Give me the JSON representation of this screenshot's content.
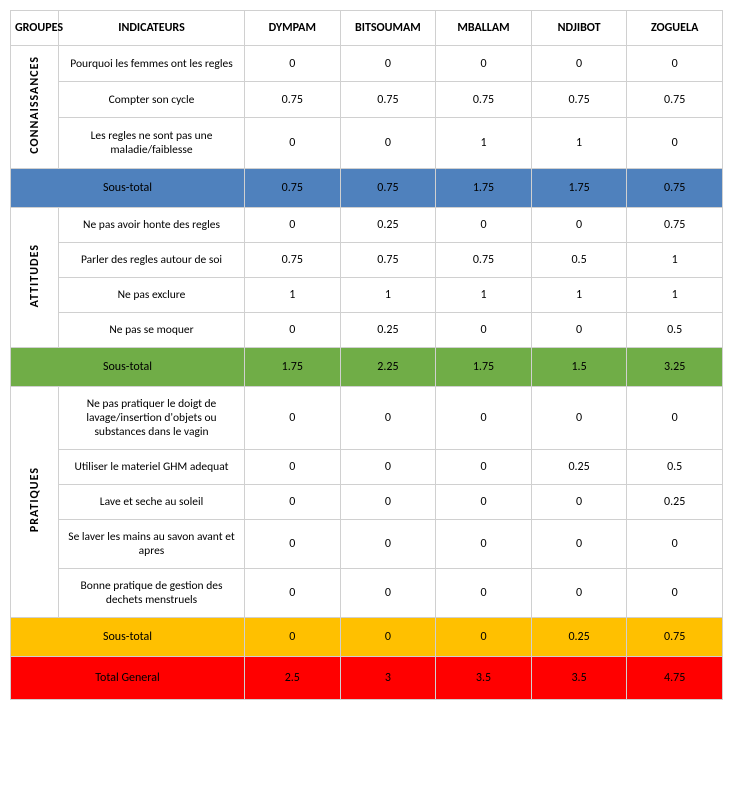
{
  "headers": {
    "groupes": "GROUPES",
    "indicateurs": "INDICATEURS",
    "villages": [
      "DYMPAM",
      "BITSOUMAM",
      "MBALLAM",
      "NDJIBOT",
      "ZOGUELA"
    ]
  },
  "colors": {
    "subtotal_connaissances": "#4f81bd",
    "subtotal_attitudes": "#70ad47",
    "subtotal_pratiques": "#ffc000",
    "total_general": "#ff0000",
    "border": "#d0d0d0",
    "bg": "#ffffff",
    "text": "#000000"
  },
  "sections": [
    {
      "key": "connaissances",
      "label": "CONNAISSANCES",
      "rows": [
        {
          "indicator": "Pourquoi les femmes ont les regles",
          "values": [
            "0",
            "0",
            "0",
            "0",
            "0"
          ]
        },
        {
          "indicator": "Compter son cycle",
          "values": [
            "0.75",
            "0.75",
            "0.75",
            "0.75",
            "0.75"
          ]
        },
        {
          "indicator": "Les regles ne sont pas une maladie/faiblesse",
          "values": [
            "0",
            "0",
            "1",
            "1",
            "0"
          ]
        }
      ],
      "subtotal": {
        "label": "Sous-total",
        "values": [
          "0.75",
          "0.75",
          "1.75",
          "1.75",
          "0.75"
        ],
        "color_key": "subtotal_connaissances"
      }
    },
    {
      "key": "attitudes",
      "label": "ATTITUDES",
      "rows": [
        {
          "indicator": "Ne pas avoir honte des regles",
          "values": [
            "0",
            "0.25",
            "0",
            "0",
            "0.75"
          ]
        },
        {
          "indicator": "Parler des regles autour de soi",
          "values": [
            "0.75",
            "0.75",
            "0.75",
            "0.5",
            "1"
          ]
        },
        {
          "indicator": "Ne pas exclure",
          "values": [
            "1",
            "1",
            "1",
            "1",
            "1"
          ]
        },
        {
          "indicator": "Ne pas se moquer",
          "values": [
            "0",
            "0.25",
            "0",
            "0",
            "0.5"
          ]
        }
      ],
      "subtotal": {
        "label": "Sous-total",
        "values": [
          "1.75",
          "2.25",
          "1.75",
          "1.5",
          "3.25"
        ],
        "color_key": "subtotal_attitudes"
      }
    },
    {
      "key": "pratiques",
      "label": "PRATIQUES",
      "rows": [
        {
          "indicator": "Ne pas pratiquer le doigt de lavage/insertion d'objets ou substances dans le vagin",
          "values": [
            "0",
            "0",
            "0",
            "0",
            "0"
          ]
        },
        {
          "indicator": "Utiliser le materiel GHM adequat",
          "values": [
            "0",
            "0",
            "0",
            "0.25",
            "0.5"
          ]
        },
        {
          "indicator": "Lave et seche au soleil",
          "values": [
            "0",
            "0",
            "0",
            "0",
            "0.25"
          ]
        },
        {
          "indicator": "Se laver les mains au savon avant et apres",
          "values": [
            "0",
            "0",
            "0",
            "0",
            "0"
          ]
        },
        {
          "indicator": "Bonne pratique de gestion des dechets menstruels",
          "values": [
            "0",
            "0",
            "0",
            "0",
            "0"
          ]
        }
      ],
      "subtotal": {
        "label": "Sous-total",
        "values": [
          "0",
          "0",
          "0",
          "0.25",
          "0.75"
        ],
        "color_key": "subtotal_pratiques"
      }
    }
  ],
  "total": {
    "label": "Total General",
    "values": [
      "2.5",
      "3",
      "3.5",
      "3.5",
      "4.75"
    ],
    "color_key": "total_general"
  }
}
